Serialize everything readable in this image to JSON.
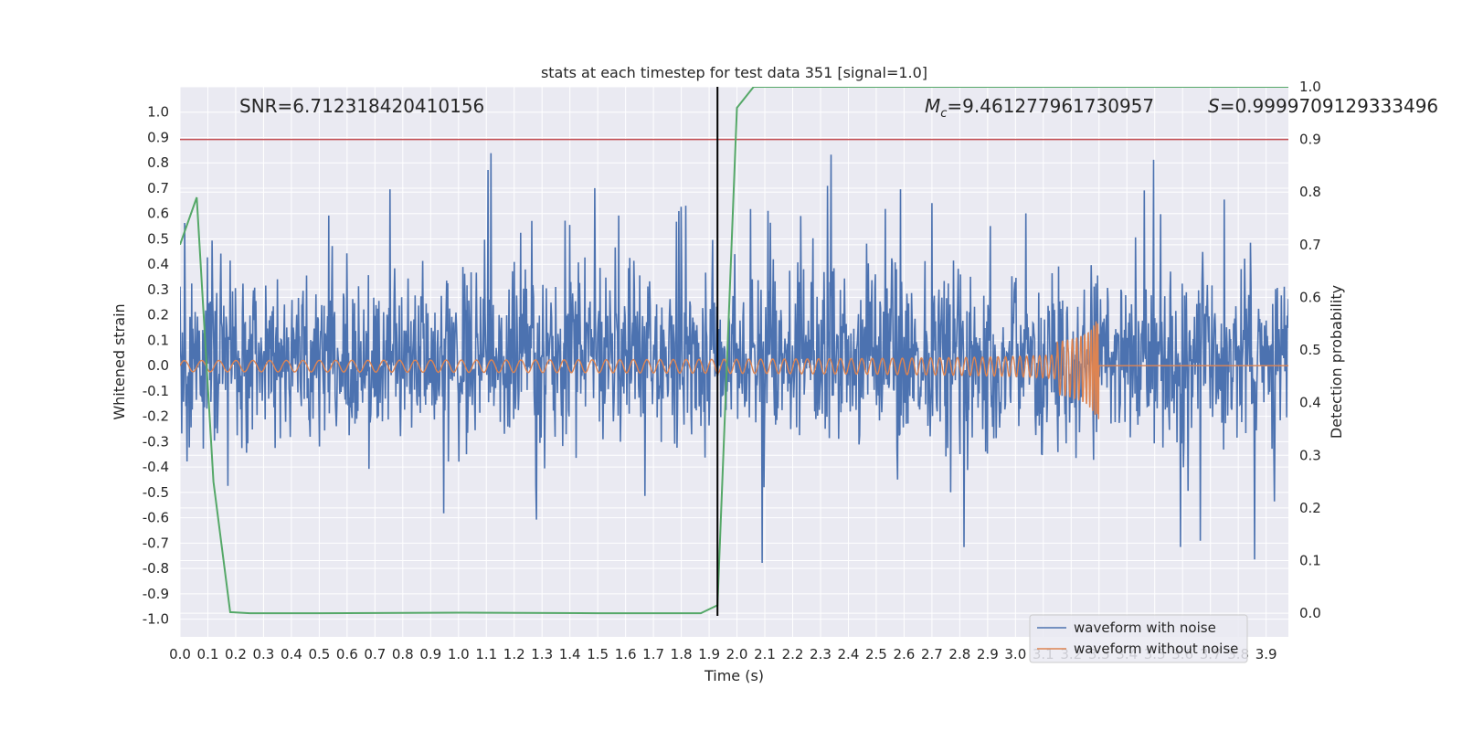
{
  "chart_data": {
    "type": "line",
    "title": "stats at each timestep for test data 351 [signal=1.0]",
    "xlabel": "Time (s)",
    "ylabel": "Whitened strain",
    "y2label": "Detection probability",
    "xlim": [
      0.0,
      3.98
    ],
    "ylim": [
      -1.07,
      1.1
    ],
    "y2lim": [
      -0.045,
      1.0
    ],
    "x_ticks": [
      0.0,
      0.1,
      0.2,
      0.3,
      0.4,
      0.5,
      0.6,
      0.7,
      0.8,
      0.9,
      1.0,
      1.1,
      1.2,
      1.3,
      1.4,
      1.5,
      1.6,
      1.7,
      1.8,
      1.9,
      2.0,
      2.1,
      2.2,
      2.3,
      2.4,
      2.5,
      2.6,
      2.7,
      2.8,
      2.9,
      3.0,
      3.1,
      3.2,
      3.3,
      3.4,
      3.5,
      3.6,
      3.7,
      3.8,
      3.9
    ],
    "y_ticks": [
      -1.0,
      -0.9,
      -0.8,
      -0.7,
      -0.6,
      -0.5,
      -0.4,
      -0.3,
      -0.2,
      -0.1,
      0.0,
      0.1,
      0.2,
      0.3,
      0.4,
      0.5,
      0.6,
      0.7,
      0.8,
      0.9,
      1.0
    ],
    "y2_ticks": [
      0.0,
      0.1,
      0.2,
      0.3,
      0.4,
      0.5,
      0.6,
      0.7,
      0.8,
      0.9,
      1.0
    ],
    "threshold": {
      "y2": 0.9,
      "color": "#c44e52"
    },
    "vline": {
      "x": 1.93,
      "y2_range": [
        -0.005,
        1.0
      ],
      "color": "#000000"
    },
    "annotations": {
      "snr": "SNR=6.712318420410156",
      "mc_symbol": "M",
      "mc_sub": "c",
      "mc_value": "=9.461277961730957",
      "s_symbol": "S",
      "s_value": "=0.9999709129333496"
    },
    "series": [
      {
        "name": "waveform with noise",
        "color": "#4c72b0",
        "amplitude_note": "noisy whitened strain, mostly within [-0.4, 0.6], spikes up to 1.0"
      },
      {
        "name": "waveform without noise",
        "color": "#dd8452",
        "chirp": {
          "start": 0.0,
          "merger": 3.3,
          "start_amplitude": 0.02,
          "peak": 0.2,
          "trough": -0.25
        }
      },
      {
        "name": "detection probability",
        "color": "#55a868",
        "axis": "y2",
        "x": [
          0.0,
          0.06,
          0.12,
          0.18,
          0.25,
          0.5,
          1.0,
          1.5,
          1.87,
          1.93,
          2.0,
          2.06,
          3.98
        ],
        "values": [
          0.7,
          0.79,
          0.25,
          0.002,
          0.0,
          0.0,
          0.001,
          0.0,
          0.0,
          0.015,
          0.96,
          1.0,
          1.0
        ]
      }
    ],
    "legend": {
      "position": "lower-right",
      "entries": [
        {
          "label": "waveform with noise",
          "color": "#4c72b0"
        },
        {
          "label": "waveform without noise",
          "color": "#dd8452"
        }
      ]
    }
  }
}
